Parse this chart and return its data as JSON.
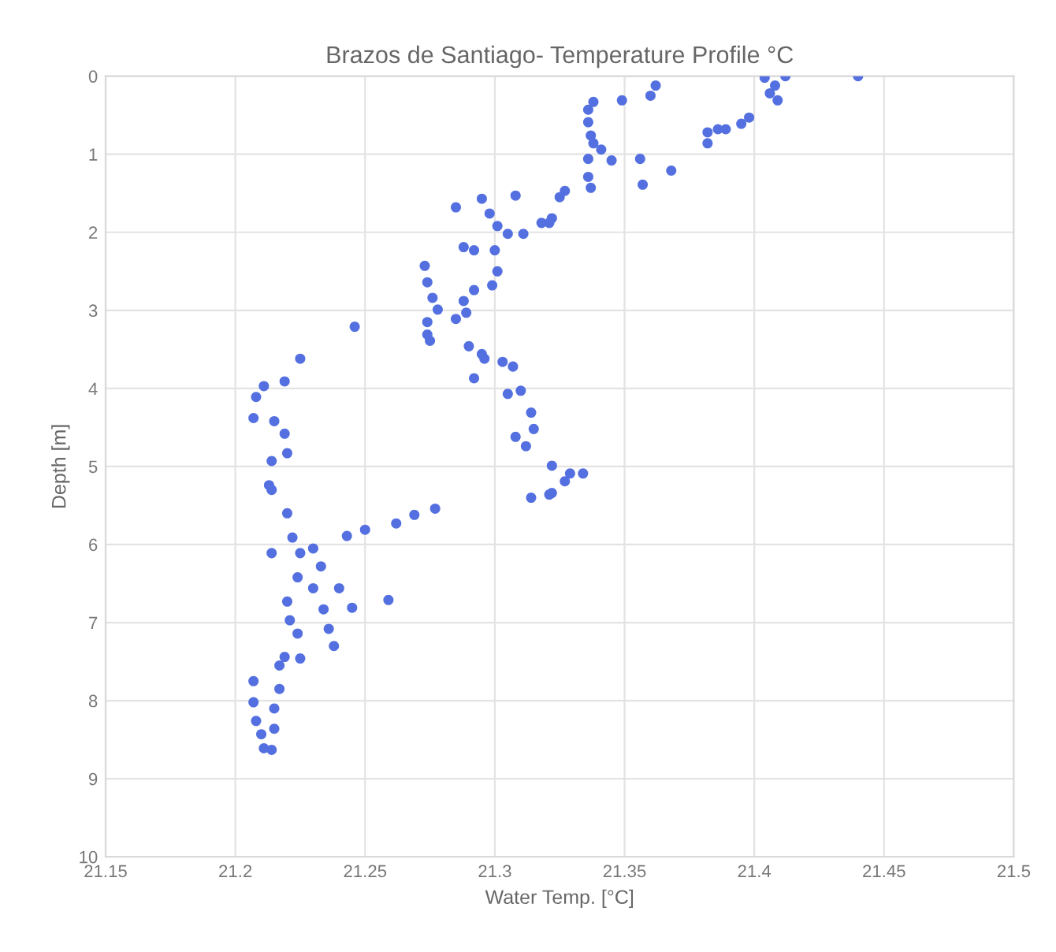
{
  "chart_data": {
    "type": "scatter",
    "title": "Brazos de Santiago- Temperature Profile °C",
    "xlabel": "Water Temp. [°C]",
    "ylabel": "Depth [m]",
    "xlim": [
      21.15,
      21.5
    ],
    "xticks": [
      21.15,
      21.2,
      21.25,
      21.3,
      21.35,
      21.4,
      21.45,
      21.5
    ],
    "ylim": [
      10,
      0
    ],
    "yticks": [
      0,
      1,
      2,
      3,
      4,
      5,
      6,
      7,
      8,
      9,
      10
    ],
    "grid": true,
    "marker": "circle",
    "series": [
      {
        "color": "#5470e0",
        "x": [
          21.44,
          21.412,
          21.408,
          21.406,
          21.409,
          21.404,
          21.398,
          21.395,
          21.389,
          21.382,
          21.382,
          21.386,
          21.362,
          21.36,
          21.349,
          21.338,
          21.336,
          21.336,
          21.337,
          21.338,
          21.341,
          21.345,
          21.336,
          21.336,
          21.337,
          21.356,
          21.357,
          21.368,
          21.327,
          21.325,
          21.322,
          21.321,
          21.285,
          21.295,
          21.298,
          21.308,
          21.301,
          21.305,
          21.311,
          21.318,
          21.288,
          21.292,
          21.3,
          21.301,
          21.299,
          21.292,
          21.288,
          21.289,
          21.285,
          21.273,
          21.274,
          21.276,
          21.278,
          21.274,
          21.274,
          21.275,
          21.246,
          21.29,
          21.295,
          21.296,
          21.303,
          21.307,
          21.292,
          21.305,
          21.31,
          21.314,
          21.308,
          21.312,
          21.315,
          21.322,
          21.329,
          21.334,
          21.327,
          21.322,
          21.314,
          21.321,
          21.225,
          21.219,
          21.211,
          21.208,
          21.207,
          21.215,
          21.219,
          21.22,
          21.214,
          21.213,
          21.214,
          21.22,
          21.222,
          21.225,
          21.214,
          21.23,
          21.243,
          21.25,
          21.262,
          21.269,
          21.277,
          21.233,
          21.224,
          21.23,
          21.24,
          21.22,
          21.234,
          21.245,
          21.259,
          21.221,
          21.224,
          21.236,
          21.238,
          21.219,
          21.225,
          21.217,
          21.217,
          21.215,
          21.215,
          21.207,
          21.207,
          21.208,
          21.21,
          21.211,
          21.214
        ],
        "values": [
          0,
          0,
          0.12,
          0.22,
          0.31,
          0.02,
          0.53,
          0.61,
          0.68,
          0.72,
          0.86,
          0.68,
          0.12,
          0.25,
          0.31,
          0.33,
          0.43,
          0.59,
          0.76,
          0.86,
          0.94,
          1.08,
          1.06,
          1.29,
          1.43,
          1.06,
          1.39,
          1.21,
          1.47,
          1.55,
          1.82,
          1.88,
          1.68,
          1.57,
          1.76,
          1.53,
          1.92,
          2.02,
          2.02,
          1.88,
          2.19,
          2.23,
          2.23,
          2.5,
          2.68,
          2.74,
          2.88,
          3.03,
          3.11,
          2.43,
          2.64,
          2.84,
          2.99,
          3.15,
          3.31,
          3.39,
          3.21,
          3.46,
          3.56,
          3.62,
          3.66,
          3.72,
          3.87,
          4.07,
          4.03,
          4.31,
          4.62,
          4.74,
          4.52,
          4.99,
          5.09,
          5.09,
          5.19,
          5.34,
          5.4,
          5.36,
          3.62,
          3.91,
          3.97,
          4.11,
          4.38,
          4.42,
          4.58,
          4.83,
          4.93,
          5.24,
          5.3,
          5.6,
          5.91,
          6.11,
          6.11,
          6.05,
          5.89,
          5.81,
          5.73,
          5.62,
          5.54,
          6.28,
          6.42,
          6.56,
          6.56,
          6.73,
          6.83,
          6.81,
          6.71,
          6.97,
          7.14,
          7.08,
          7.3,
          7.44,
          7.46,
          7.55,
          7.85,
          8.1,
          8.36,
          7.75,
          8.02,
          8.26,
          8.43,
          8.61,
          8.63
        ]
      }
    ]
  }
}
